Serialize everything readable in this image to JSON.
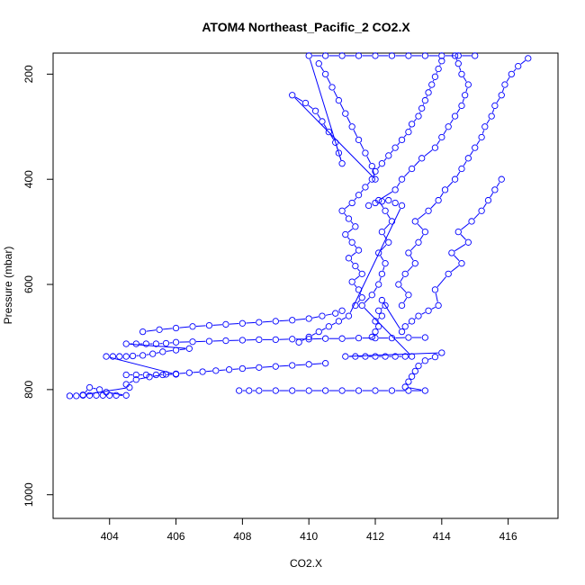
{
  "chart_data": {
    "type": "scatter",
    "title": "ATOM4 Northeast_Pacific_2 CO2.X",
    "xlabel": "CO2.X",
    "ylabel": "Pressure (mbar)",
    "xlim": [
      402.3,
      417.5
    ],
    "ylim": [
      1045,
      160
    ],
    "y_reversed": true,
    "x_ticks": [
      404,
      406,
      408,
      410,
      412,
      414,
      416
    ],
    "y_ticks": [
      200,
      400,
      600,
      800,
      1000
    ],
    "marker": "open-circle",
    "connected_lines": true,
    "grid": false,
    "legend": "none",
    "color": "#0000ff",
    "series": [
      {
        "points": [
          [
            402.8,
            812
          ],
          [
            403.0,
            812
          ],
          [
            403.2,
            811
          ],
          [
            403.4,
            811
          ],
          [
            403.6,
            811
          ],
          [
            403.8,
            811
          ],
          [
            404.0,
            811
          ],
          [
            404.2,
            811
          ],
          [
            404.5,
            811
          ],
          [
            403.9,
            805
          ],
          [
            403.7,
            800
          ],
          [
            403.4,
            796
          ],
          [
            403.2,
            810
          ],
          [
            404.6,
            796
          ],
          [
            404.5,
            790
          ],
          [
            404.8,
            781
          ],
          [
            405.2,
            776
          ],
          [
            405.6,
            772
          ],
          [
            406.0,
            770
          ],
          [
            406.4,
            768
          ],
          [
            406.8,
            766
          ],
          [
            407.2,
            764
          ],
          [
            407.6,
            762
          ],
          [
            408.0,
            760
          ],
          [
            408.5,
            758
          ],
          [
            409.0,
            756
          ],
          [
            409.5,
            754
          ],
          [
            410.0,
            752
          ],
          [
            410.5,
            750
          ],
          [
            404.5,
            772
          ],
          [
            404.8,
            772
          ],
          [
            405.1,
            772
          ],
          [
            405.4,
            772
          ],
          [
            405.7,
            771
          ],
          [
            406.0,
            771
          ],
          [
            403.9,
            737
          ],
          [
            404.1,
            737
          ],
          [
            404.3,
            737
          ],
          [
            404.5,
            737
          ],
          [
            404.7,
            736
          ],
          [
            405.0,
            735
          ],
          [
            405.3,
            732
          ],
          [
            405.6,
            728
          ],
          [
            406.0,
            725
          ],
          [
            406.4,
            722
          ],
          [
            404.5,
            713
          ],
          [
            404.8,
            713
          ],
          [
            405.1,
            713
          ],
          [
            405.4,
            713
          ],
          [
            405.7,
            712
          ],
          [
            406.0,
            710
          ],
          [
            406.5,
            709
          ],
          [
            407.0,
            708
          ],
          [
            407.5,
            707
          ],
          [
            408.0,
            706
          ],
          [
            408.5,
            705
          ],
          [
            409.0,
            705
          ],
          [
            409.5,
            704
          ],
          [
            410.0,
            704
          ],
          [
            410.5,
            703
          ],
          [
            411.0,
            703
          ],
          [
            411.5,
            702
          ],
          [
            412.0,
            702
          ],
          [
            412.5,
            702
          ],
          [
            413.0,
            701
          ],
          [
            413.5,
            701
          ],
          [
            405.0,
            690
          ],
          [
            405.5,
            686
          ],
          [
            406.0,
            683
          ],
          [
            406.5,
            680
          ],
          [
            407.0,
            678
          ],
          [
            407.5,
            676
          ],
          [
            408.0,
            674
          ],
          [
            408.5,
            672
          ],
          [
            409.0,
            670
          ],
          [
            409.5,
            668
          ],
          [
            410.0,
            665
          ],
          [
            410.4,
            660
          ],
          [
            410.8,
            655
          ],
          [
            411.0,
            650
          ],
          [
            407.9,
            802
          ],
          [
            408.2,
            802
          ],
          [
            408.5,
            802
          ],
          [
            409.0,
            802
          ],
          [
            409.5,
            802
          ],
          [
            410.0,
            802
          ],
          [
            410.5,
            802
          ],
          [
            411.0,
            802
          ],
          [
            411.5,
            802
          ],
          [
            412.0,
            802
          ],
          [
            412.5,
            802
          ],
          [
            413.0,
            802
          ],
          [
            413.5,
            802
          ],
          [
            412.9,
            795
          ],
          [
            413.0,
            785
          ],
          [
            413.1,
            775
          ],
          [
            413.2,
            765
          ],
          [
            413.3,
            755
          ],
          [
            413.5,
            745
          ],
          [
            413.8,
            738
          ],
          [
            414.0,
            730
          ],
          [
            411.1,
            737
          ],
          [
            411.4,
            737
          ],
          [
            411.7,
            737
          ],
          [
            412.0,
            737
          ],
          [
            412.3,
            737
          ],
          [
            412.6,
            737
          ],
          [
            412.9,
            737
          ],
          [
            413.1,
            737
          ],
          [
            411.6,
            640
          ],
          [
            411.9,
            620
          ],
          [
            412.1,
            600
          ],
          [
            412.2,
            580
          ],
          [
            412.3,
            560
          ],
          [
            412.1,
            540
          ],
          [
            412.4,
            520
          ],
          [
            412.2,
            500
          ],
          [
            412.5,
            480
          ],
          [
            412.3,
            460
          ],
          [
            412.1,
            440
          ],
          [
            412.6,
            420
          ],
          [
            412.8,
            400
          ],
          [
            413.1,
            380
          ],
          [
            413.4,
            360
          ],
          [
            413.8,
            340
          ],
          [
            414.0,
            320
          ],
          [
            414.2,
            300
          ],
          [
            414.4,
            280
          ],
          [
            414.6,
            260
          ],
          [
            414.7,
            240
          ],
          [
            414.8,
            220
          ],
          [
            414.6,
            200
          ],
          [
            414.5,
            180
          ],
          [
            414.4,
            165
          ],
          [
            411.4,
            640
          ],
          [
            411.6,
            625
          ],
          [
            411.5,
            610
          ],
          [
            411.3,
            595
          ],
          [
            411.6,
            580
          ],
          [
            411.4,
            565
          ],
          [
            411.2,
            550
          ],
          [
            411.5,
            535
          ],
          [
            411.3,
            520
          ],
          [
            411.1,
            505
          ],
          [
            411.4,
            490
          ],
          [
            411.2,
            475
          ],
          [
            411.0,
            460
          ],
          [
            411.3,
            445
          ],
          [
            411.5,
            430
          ],
          [
            411.7,
            415
          ],
          [
            411.9,
            400
          ],
          [
            412.0,
            385
          ],
          [
            412.2,
            370
          ],
          [
            412.4,
            355
          ],
          [
            412.6,
            340
          ],
          [
            412.8,
            325
          ],
          [
            413.0,
            310
          ],
          [
            413.1,
            295
          ],
          [
            413.3,
            280
          ],
          [
            413.4,
            265
          ],
          [
            413.5,
            250
          ],
          [
            413.6,
            235
          ],
          [
            413.7,
            220
          ],
          [
            413.8,
            205
          ],
          [
            413.9,
            190
          ],
          [
            414.0,
            175
          ],
          [
            412.8,
            640
          ],
          [
            413.0,
            620
          ],
          [
            412.7,
            600
          ],
          [
            412.9,
            580
          ],
          [
            413.2,
            560
          ],
          [
            413.0,
            540
          ],
          [
            413.3,
            520
          ],
          [
            413.5,
            500
          ],
          [
            413.2,
            480
          ],
          [
            413.6,
            460
          ],
          [
            413.9,
            440
          ],
          [
            414.1,
            420
          ],
          [
            414.4,
            400
          ],
          [
            414.6,
            380
          ],
          [
            414.8,
            360
          ],
          [
            415.0,
            340
          ],
          [
            415.2,
            320
          ],
          [
            415.3,
            300
          ],
          [
            415.5,
            280
          ],
          [
            415.6,
            260
          ],
          [
            415.8,
            240
          ],
          [
            415.9,
            220
          ],
          [
            416.1,
            200
          ],
          [
            416.3,
            185
          ],
          [
            416.6,
            170
          ],
          [
            410.3,
            180
          ],
          [
            410.5,
            200
          ],
          [
            410.7,
            225
          ],
          [
            410.9,
            250
          ],
          [
            411.1,
            275
          ],
          [
            411.3,
            300
          ],
          [
            411.5,
            325
          ],
          [
            411.7,
            350
          ],
          [
            411.9,
            375
          ],
          [
            412.0,
            400
          ],
          [
            409.5,
            240
          ],
          [
            409.9,
            255
          ],
          [
            410.2,
            270
          ],
          [
            410.4,
            290
          ],
          [
            410.6,
            310
          ],
          [
            410.8,
            330
          ],
          [
            410.9,
            350
          ],
          [
            411.0,
            370
          ],
          [
            410.0,
            165
          ],
          [
            410.5,
            165
          ],
          [
            411.0,
            165
          ],
          [
            411.5,
            165
          ],
          [
            412.0,
            165
          ],
          [
            412.5,
            165
          ],
          [
            413.0,
            165
          ],
          [
            413.5,
            165
          ],
          [
            414.0,
            165
          ],
          [
            414.5,
            165
          ],
          [
            415.0,
            165
          ],
          [
            411.9,
            700
          ],
          [
            412.0,
            690
          ],
          [
            412.1,
            680
          ],
          [
            412.0,
            670
          ],
          [
            412.2,
            660
          ],
          [
            412.1,
            650
          ],
          [
            412.3,
            640
          ],
          [
            412.2,
            630
          ],
          [
            412.8,
            690
          ],
          [
            412.9,
            680
          ],
          [
            413.1,
            670
          ],
          [
            413.3,
            660
          ],
          [
            413.6,
            650
          ],
          [
            413.9,
            640
          ],
          [
            413.8,
            610
          ],
          [
            414.2,
            580
          ],
          [
            414.6,
            560
          ],
          [
            414.3,
            540
          ],
          [
            414.8,
            520
          ],
          [
            414.5,
            500
          ],
          [
            414.9,
            480
          ],
          [
            415.2,
            460
          ],
          [
            415.4,
            440
          ],
          [
            415.6,
            420
          ],
          [
            415.8,
            400
          ],
          [
            411.8,
            450
          ],
          [
            412.0,
            445
          ],
          [
            412.2,
            442
          ],
          [
            412.4,
            440
          ],
          [
            412.6,
            445
          ],
          [
            412.8,
            450
          ],
          [
            411.2,
            660
          ],
          [
            410.9,
            670
          ],
          [
            410.6,
            680
          ],
          [
            410.3,
            690
          ],
          [
            410.0,
            700
          ],
          [
            409.7,
            710
          ]
        ]
      }
    ]
  }
}
